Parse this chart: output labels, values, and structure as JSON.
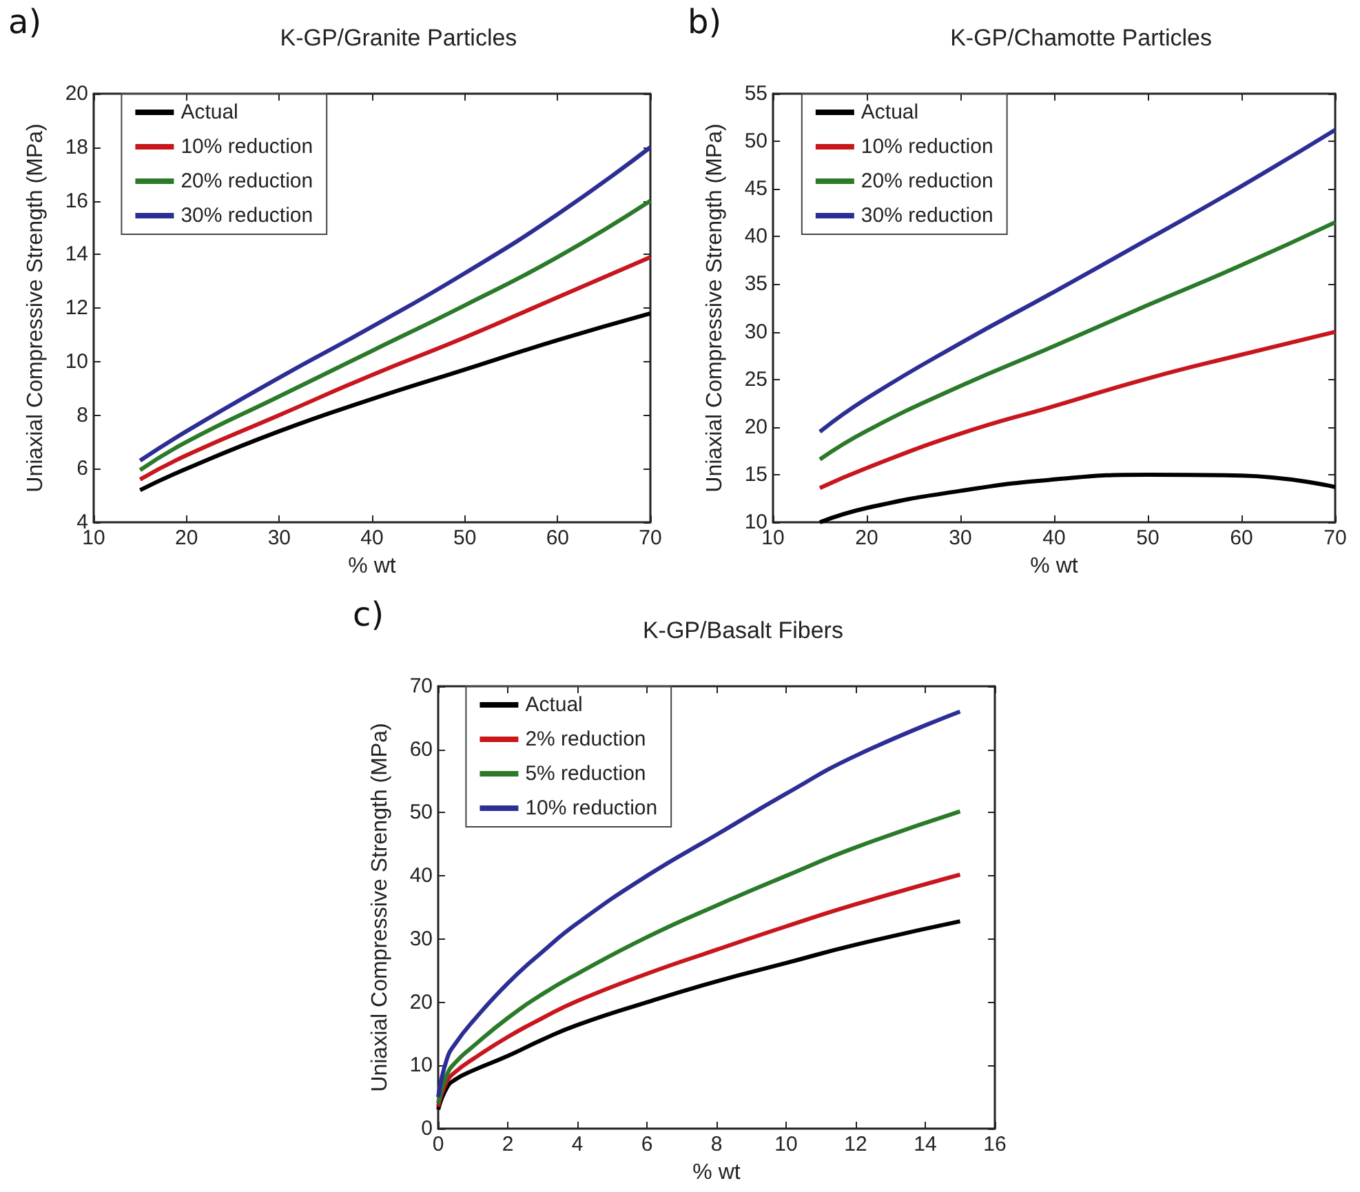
{
  "chart_data": [
    {
      "type": "line",
      "title": "K-GP/Granite Particles",
      "annotations": [
        "a)"
      ],
      "xlabel": "% wt",
      "ylabel": "Uniaxial Compressive Strength (MPa)",
      "x": [
        15,
        20,
        30,
        40,
        50,
        60,
        70
      ],
      "xlim": [
        10,
        70
      ],
      "xticks": [
        10,
        20,
        30,
        40,
        50,
        60,
        70
      ],
      "ylim": [
        4,
        20
      ],
      "yticks": [
        4,
        6,
        8,
        10,
        12,
        14,
        16,
        18,
        20
      ],
      "grid": false,
      "legend": "top left",
      "marker": "none",
      "line_style": "solid",
      "series": [
        {
          "name": "Actual",
          "color": "#000000",
          "values": [
            5.2,
            6.0,
            7.4,
            8.6,
            9.7,
            10.8,
            11.8
          ]
        },
        {
          "name": "10% reduction",
          "color": "#c8161d",
          "values": [
            5.6,
            6.5,
            8.0,
            9.5,
            10.9,
            12.4,
            13.9
          ]
        },
        {
          "name": "20% reduction",
          "color": "#2a7a2a",
          "values": [
            5.95,
            7.0,
            8.7,
            10.4,
            12.1,
            13.9,
            16.0
          ]
        },
        {
          "name": "30% reduction",
          "color": "#2d2d96",
          "values": [
            6.3,
            7.4,
            9.4,
            11.3,
            13.3,
            15.5,
            18.0
          ]
        }
      ]
    },
    {
      "type": "line",
      "title": "K-GP/Chamotte Particles",
      "annotations": [
        "b)"
      ],
      "xlabel": "% wt",
      "ylabel": "Uniaxial Compressive Strength (MPa)",
      "x": [
        15,
        20,
        30,
        40,
        50,
        60,
        70
      ],
      "xlim": [
        10,
        70
      ],
      "xticks": [
        10,
        20,
        30,
        40,
        50,
        60,
        70
      ],
      "ylim": [
        10,
        55
      ],
      "yticks": [
        10,
        15,
        20,
        25,
        30,
        35,
        40,
        45,
        50,
        55
      ],
      "grid": false,
      "legend": "top left",
      "marker": "none",
      "line_style": "solid",
      "series": [
        {
          "name": "Actual",
          "color": "#000000",
          "values": [
            10.0,
            11.5,
            13.3,
            14.5,
            15.0,
            14.9,
            13.7
          ]
        },
        {
          "name": "10% reduction",
          "color": "#c8161d",
          "values": [
            13.6,
            15.7,
            19.3,
            22.2,
            25.1,
            27.6,
            30.0
          ]
        },
        {
          "name": "20% reduction",
          "color": "#2a7a2a",
          "values": [
            16.6,
            19.6,
            24.3,
            28.5,
            32.8,
            37.0,
            41.5
          ]
        },
        {
          "name": "30% reduction",
          "color": "#2d2d96",
          "values": [
            19.5,
            23.0,
            28.8,
            34.2,
            39.7,
            45.3,
            51.2
          ]
        }
      ]
    },
    {
      "type": "line",
      "title": "K-GP/Basalt Fibers",
      "annotations": [
        "c)"
      ],
      "xlabel": "% wt",
      "ylabel": "Uniaxial Compressive Strength (MPa)",
      "x": [
        0,
        0.25,
        0.5,
        1,
        2,
        3,
        4,
        6,
        8,
        10,
        12,
        15
      ],
      "xlim": [
        0,
        16
      ],
      "xticks": [
        0,
        2,
        4,
        6,
        8,
        10,
        12,
        14,
        16
      ],
      "ylim": [
        0,
        70
      ],
      "yticks": [
        0,
        10,
        20,
        30,
        40,
        50,
        60,
        70
      ],
      "grid": false,
      "legend": "top left",
      "marker": "none",
      "line_style": "solid",
      "series": [
        {
          "name": "Actual",
          "color": "#000000",
          "values": [
            3,
            6.5,
            7.8,
            9.2,
            11.5,
            14.1,
            16.4,
            20.0,
            23.3,
            26.2,
            29.1,
            32.8
          ]
        },
        {
          "name": "2% reduction",
          "color": "#c8161d",
          "values": [
            3.5,
            7.5,
            9,
            11,
            14.5,
            17.5,
            20.2,
            24.5,
            28.3,
            32,
            35.5,
            40.2
          ]
        },
        {
          "name": "5% reduction",
          "color": "#2a7a2a",
          "values": [
            4,
            8.5,
            10.5,
            13,
            17.5,
            21.3,
            24.5,
            30.3,
            35.3,
            40,
            44.5,
            50.2
          ]
        },
        {
          "name": "10% reduction",
          "color": "#2d2d96",
          "values": [
            5,
            11,
            13.5,
            17,
            23,
            28,
            32.5,
            40,
            46.5,
            53,
            59,
            66
          ]
        }
      ]
    }
  ]
}
